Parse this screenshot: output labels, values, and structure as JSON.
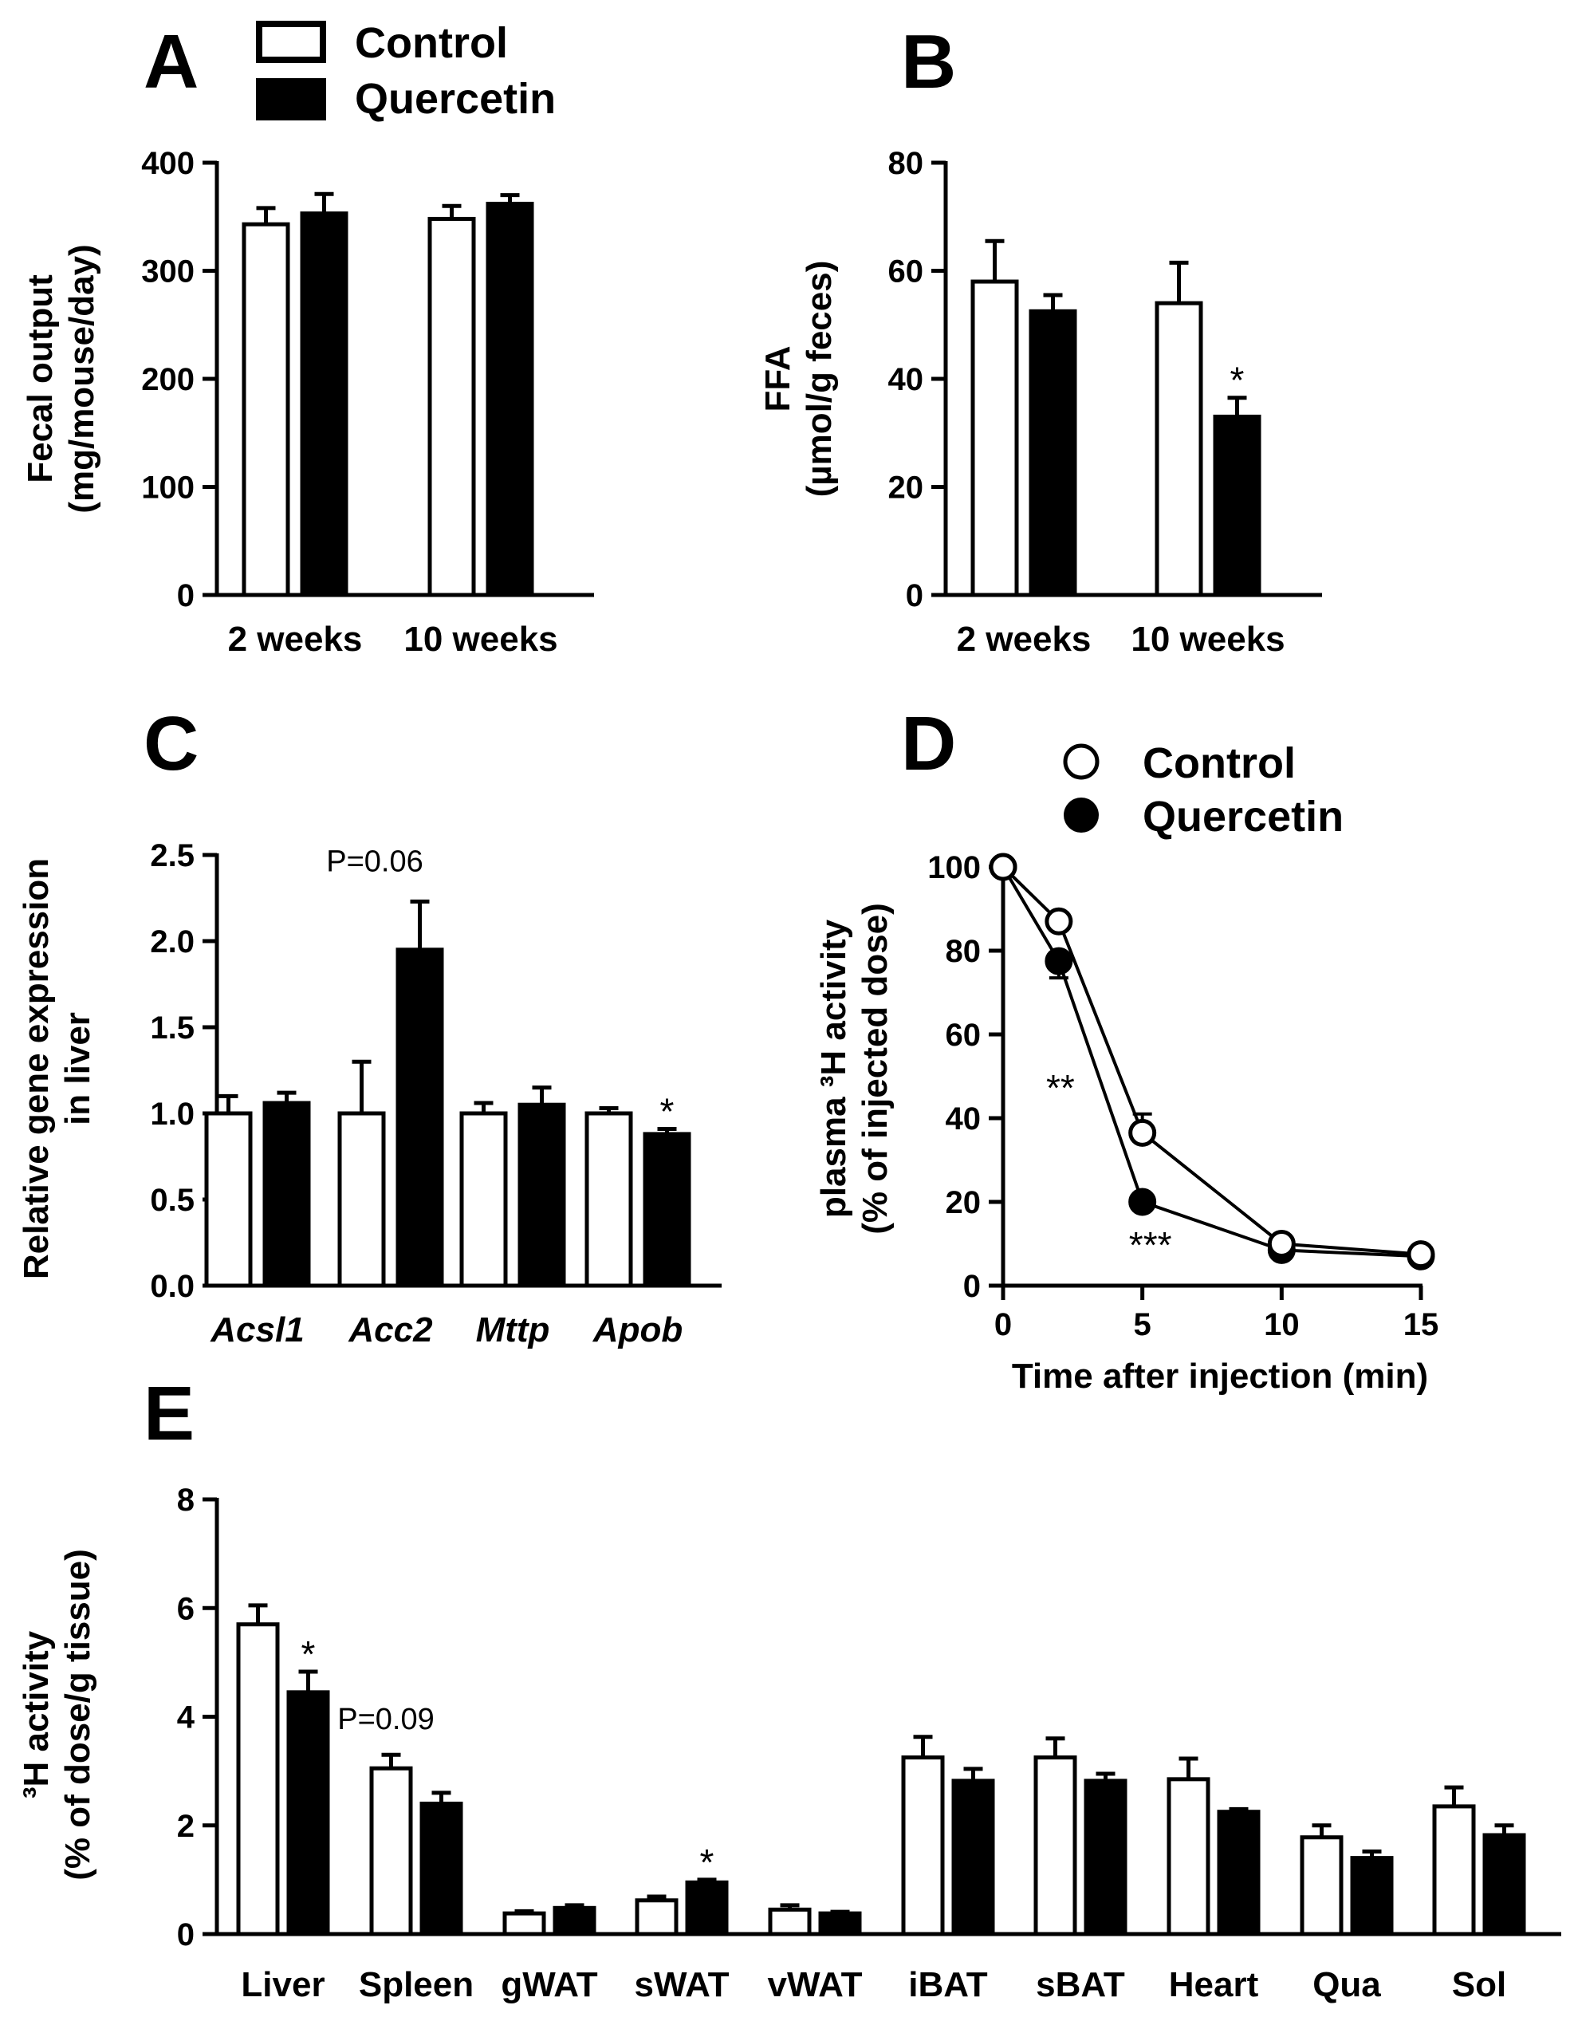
{
  "legend": {
    "control": "Control",
    "quercetin": "Quercetin"
  },
  "chart_data": [
    {
      "panel": "A",
      "type": "bar",
      "ylabel": [
        "Fecal output",
        "(mg/mouse/day)"
      ],
      "categories": [
        "2 weeks",
        "10 weeks"
      ],
      "ylim": [
        0,
        400
      ],
      "yticks": [
        0,
        100,
        200,
        300,
        400
      ],
      "series": [
        {
          "name": "Control",
          "values": [
            343,
            348
          ],
          "errors": [
            15,
            12
          ]
        },
        {
          "name": "Quercetin",
          "values": [
            353,
            362
          ],
          "errors": [
            18,
            8
          ]
        }
      ],
      "annotations": []
    },
    {
      "panel": "B",
      "type": "bar",
      "ylabel": [
        "FFA",
        "(µmol/g feces)"
      ],
      "categories": [
        "2 weeks",
        "10 weeks"
      ],
      "ylim": [
        0,
        80
      ],
      "yticks": [
        0,
        20,
        40,
        60,
        80
      ],
      "series": [
        {
          "name": "Control",
          "values": [
            58,
            54
          ],
          "errors": [
            7.5,
            7.5
          ]
        },
        {
          "name": "Quercetin",
          "values": [
            52.5,
            33
          ],
          "errors": [
            3,
            3.5
          ]
        }
      ],
      "annotations": [
        {
          "text": "*",
          "category": 1,
          "series": 1
        }
      ]
    },
    {
      "panel": "C",
      "type": "bar",
      "ylabel": [
        "Relative gene expression",
        "in liver"
      ],
      "categories": [
        "Acsl1",
        "Acc2",
        "Mttp",
        "Apob"
      ],
      "ylim": [
        0,
        2.5
      ],
      "yticks": [
        "0.0",
        "0.5",
        "1.0",
        "1.5",
        "2.0",
        "2.5"
      ],
      "series": [
        {
          "name": "Control",
          "values": [
            1.0,
            1.0,
            1.0,
            1.0
          ],
          "errors": [
            0.1,
            0.3,
            0.06,
            0.03
          ]
        },
        {
          "name": "Quercetin",
          "values": [
            1.06,
            1.95,
            1.05,
            0.88
          ],
          "errors": [
            0.06,
            0.28,
            0.1,
            0.03
          ]
        }
      ],
      "annotations": [
        {
          "text": "P=0.06",
          "category": 1,
          "series": 1
        },
        {
          "text": "*",
          "category": 3,
          "series": 1
        }
      ]
    },
    {
      "panel": "D",
      "type": "line",
      "xlabel": "Time after injection (min)",
      "ylabel": [
        "plasma ³H activity",
        "(% of injected dose)"
      ],
      "x": [
        0,
        2,
        5,
        10,
        15
      ],
      "xlim": [
        0,
        15
      ],
      "ylim": [
        0,
        100
      ],
      "xticks": [
        0,
        5,
        10,
        15
      ],
      "yticks": [
        0,
        20,
        40,
        60,
        80,
        100
      ],
      "series": [
        {
          "name": "Control",
          "values": [
            100,
            87,
            36.5,
            10,
            7.5
          ],
          "errors": [
            0,
            1.5,
            4.5,
            0,
            0
          ]
        },
        {
          "name": "Quercetin",
          "values": [
            100,
            77.5,
            20,
            8.5,
            7
          ],
          "errors": [
            0,
            4,
            1,
            0,
            0
          ]
        }
      ],
      "annotations": [
        {
          "text": "**",
          "x": 2
        },
        {
          "text": "***",
          "x": 5
        }
      ]
    },
    {
      "panel": "E",
      "type": "bar",
      "ylabel": [
        "³H activity",
        "(% of dose/g tissue)"
      ],
      "categories": [
        "Liver",
        "Spleen",
        "gWAT",
        "sWAT",
        "vWAT",
        "iBAT",
        "sBAT",
        "Heart",
        "Qua",
        "Sol"
      ],
      "ylim": [
        0,
        8
      ],
      "yticks": [
        0,
        2,
        4,
        6,
        8
      ],
      "series": [
        {
          "name": "Control",
          "values": [
            5.7,
            3.05,
            0.38,
            0.62,
            0.45,
            3.25,
            3.25,
            2.85,
            1.78,
            2.35
          ],
          "errors": [
            0.35,
            0.25,
            0.04,
            0.07,
            0.08,
            0.38,
            0.35,
            0.38,
            0.22,
            0.35
          ]
        },
        {
          "name": "Quercetin",
          "values": [
            4.45,
            2.4,
            0.48,
            0.95,
            0.38,
            2.82,
            2.82,
            2.25,
            1.4,
            1.82
          ],
          "errors": [
            0.38,
            0.2,
            0.05,
            0.05,
            0.03,
            0.22,
            0.13,
            0.05,
            0.12,
            0.18
          ]
        }
      ],
      "annotations": [
        {
          "text": "*",
          "category": 0,
          "series": 1
        },
        {
          "text": "P=0.09",
          "category": 1,
          "series": 1
        },
        {
          "text": "*",
          "category": 3,
          "series": 1
        }
      ]
    }
  ]
}
